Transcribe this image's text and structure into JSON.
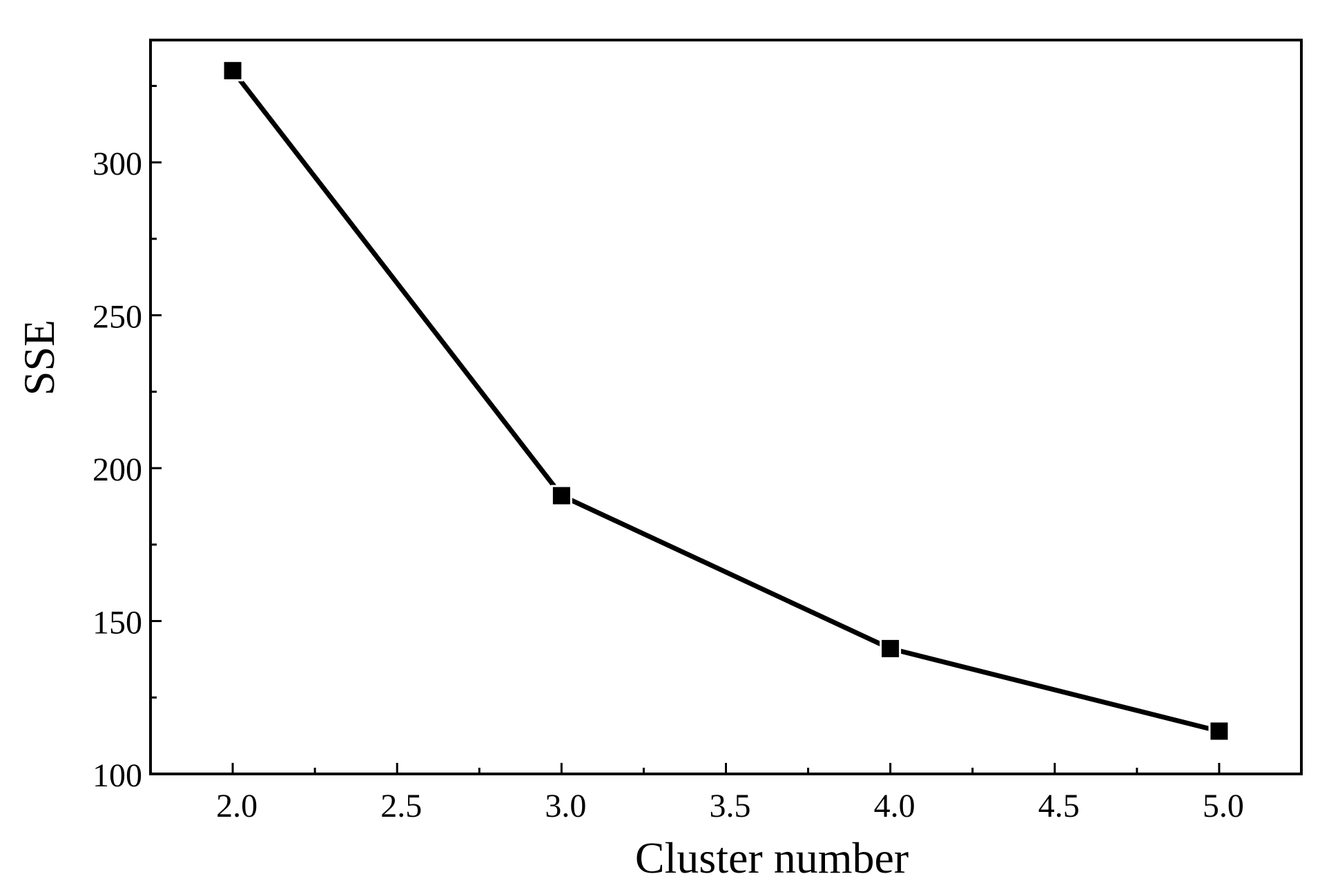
{
  "chart_data": {
    "type": "line",
    "xlabel": "Cluster number",
    "ylabel": "SSE",
    "xlim": [
      1.75,
      5.25
    ],
    "ylim": [
      100,
      340
    ],
    "x_ticks": [
      2.0,
      2.5,
      3.0,
      3.5,
      4.0,
      4.5,
      5.0
    ],
    "x_tick_labels": [
      "2.0",
      "2.5",
      "3.0",
      "3.5",
      "4.0",
      "4.5",
      "5.0"
    ],
    "x_minor_ticks": [
      2.25,
      2.75,
      3.25,
      3.75,
      4.25,
      4.75
    ],
    "y_ticks": [
      100,
      150,
      200,
      250,
      300
    ],
    "y_tick_labels": [
      "100",
      "150",
      "200",
      "250",
      "300"
    ],
    "y_minor_ticks": [
      125,
      175,
      225,
      275,
      325
    ],
    "grid": false,
    "legend": "none",
    "series": [
      {
        "x": [
          2,
          3,
          4,
          5
        ],
        "y": [
          330,
          191,
          141,
          114
        ],
        "marker": "square",
        "color": "#000000"
      }
    ]
  }
}
